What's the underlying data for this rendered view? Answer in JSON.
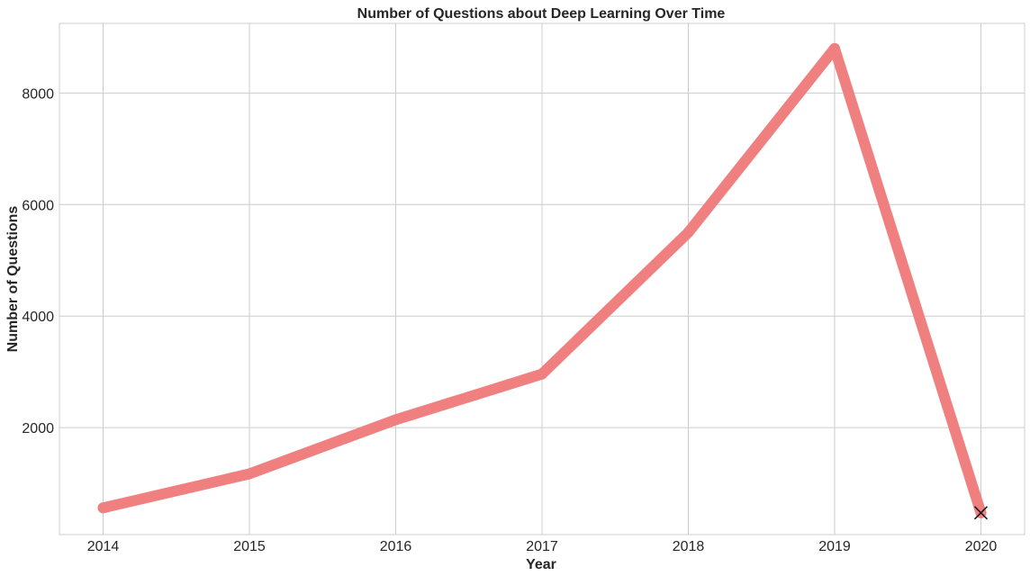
{
  "chart_data": {
    "type": "line",
    "title": "Number of Questions about Deep Learning Over Time",
    "xlabel": "Year",
    "ylabel": "Number of Questions",
    "x": [
      "2014",
      "2015",
      "2016",
      "2017",
      "2018",
      "2019",
      "2020"
    ],
    "series": [
      {
        "values": [
          560,
          1170,
          2140,
          2960,
          5500,
          8800,
          470
        ],
        "color": "#f08080",
        "marker_last": "x"
      }
    ],
    "yticks": [
      "2000",
      "4000",
      "6000",
      "8000"
    ],
    "ylim": [
      80,
      9250
    ],
    "grid": true,
    "legend": "none",
    "colors": {
      "line": "#f08080",
      "marker": "#1a1a1a",
      "grid": "#cccccc",
      "text": "#262626"
    }
  }
}
